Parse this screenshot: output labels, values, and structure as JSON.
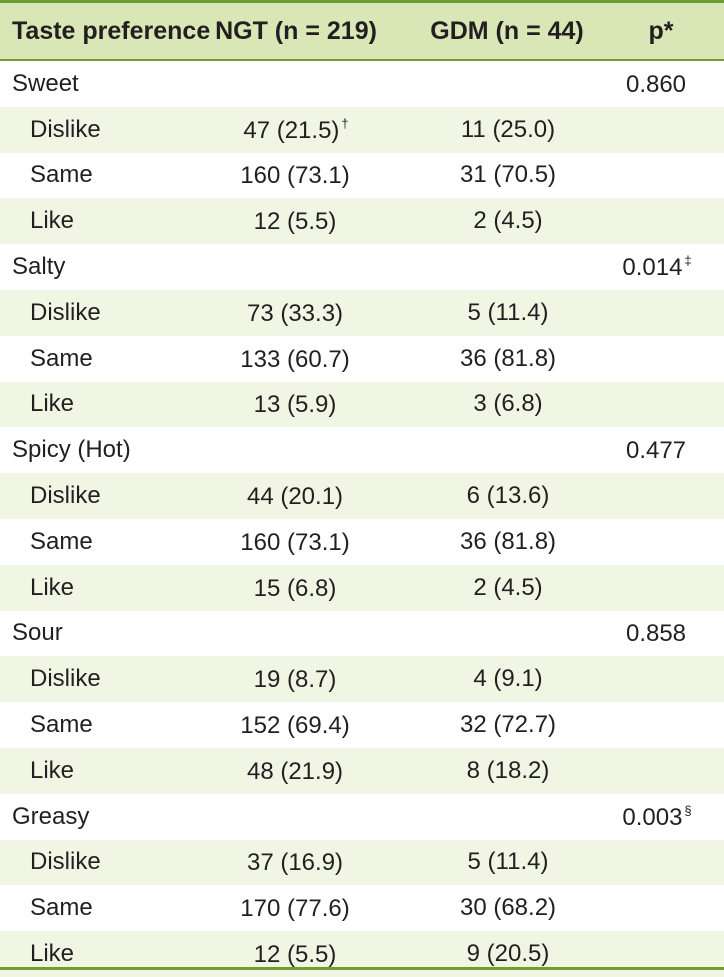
{
  "header": {
    "col1": "Taste preference",
    "col2": "NGT (n = 219)",
    "col3": "GDM (n = 44)",
    "col4": "p*"
  },
  "groups": [
    {
      "name": "Sweet",
      "p": "0.860",
      "p_mark": "",
      "rows": [
        {
          "label": "Dislike",
          "ngt": "47 (21.5)",
          "ngt_mark": "†",
          "gdm": "11 (25.0)"
        },
        {
          "label": "Same",
          "ngt": "160 (73.1)",
          "ngt_mark": "",
          "gdm": "31 (70.5)"
        },
        {
          "label": "Like",
          "ngt": "12 (5.5)",
          "ngt_mark": "",
          "gdm": "2 (4.5)"
        }
      ]
    },
    {
      "name": "Salty",
      "p": "0.014",
      "p_mark": "‡",
      "rows": [
        {
          "label": "Dislike",
          "ngt": "73 (33.3)",
          "ngt_mark": "",
          "gdm": "5 (11.4)"
        },
        {
          "label": "Same",
          "ngt": "133 (60.7)",
          "ngt_mark": "",
          "gdm": "36 (81.8)"
        },
        {
          "label": "Like",
          "ngt": "13 (5.9)",
          "ngt_mark": "",
          "gdm": "3 (6.8)"
        }
      ]
    },
    {
      "name": "Spicy (Hot)",
      "p": "0.477",
      "p_mark": "",
      "rows": [
        {
          "label": "Dislike",
          "ngt": "44 (20.1)",
          "ngt_mark": "",
          "gdm": "6 (13.6)"
        },
        {
          "label": "Same",
          "ngt": "160 (73.1)",
          "ngt_mark": "",
          "gdm": "36 (81.8)"
        },
        {
          "label": "Like",
          "ngt": "15 (6.8)",
          "ngt_mark": "",
          "gdm": "2 (4.5)"
        }
      ]
    },
    {
      "name": "Sour",
      "p": "0.858",
      "p_mark": "",
      "rows": [
        {
          "label": "Dislike",
          "ngt": "19 (8.7)",
          "ngt_mark": "",
          "gdm": "4 (9.1)"
        },
        {
          "label": "Same",
          "ngt": "152 (69.4)",
          "ngt_mark": "",
          "gdm": "32 (72.7)"
        },
        {
          "label": "Like",
          "ngt": "48 (21.9)",
          "ngt_mark": "",
          "gdm": "8 (18.2)"
        }
      ]
    },
    {
      "name": "Greasy",
      "p": "0.003",
      "p_mark": "§",
      "rows": [
        {
          "label": "Dislike",
          "ngt": "37 (16.9)",
          "ngt_mark": "",
          "gdm": "5 (11.4)"
        },
        {
          "label": "Same",
          "ngt": "170 (77.6)",
          "ngt_mark": "",
          "gdm": "30 (68.2)"
        },
        {
          "label": "Like",
          "ngt": "12 (5.5)",
          "ngt_mark": "",
          "gdm": "9 (20.5)"
        }
      ]
    }
  ]
}
